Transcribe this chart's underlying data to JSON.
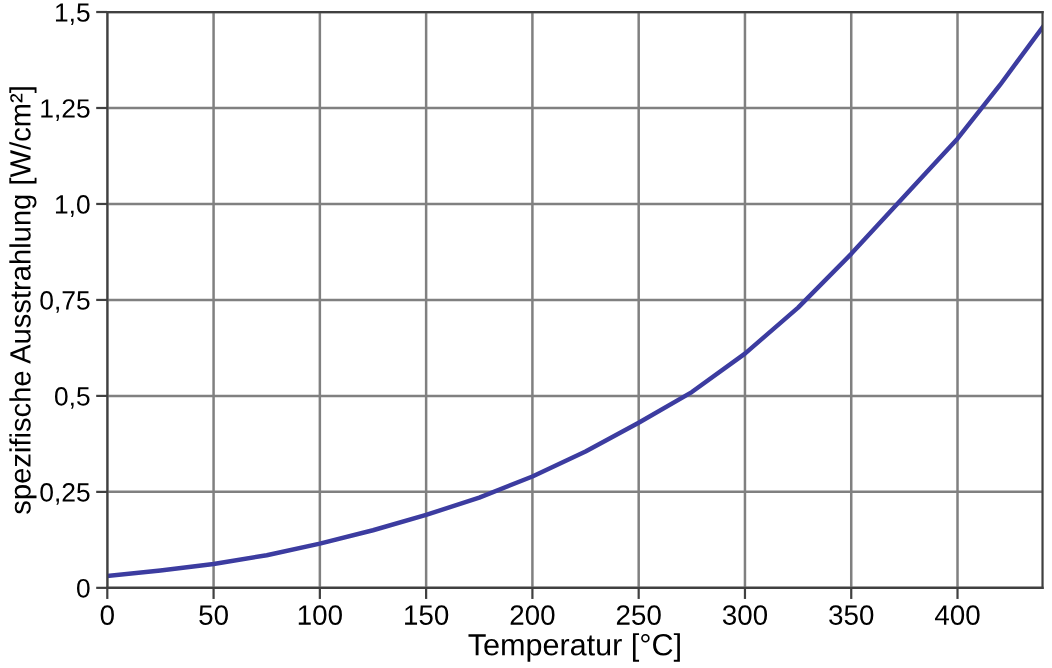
{
  "chart_data": {
    "type": "line",
    "xlabel": "Temperatur [°C]",
    "ylabel": "spezifische Ausstrahlung [W/cm²]",
    "x": [
      0,
      25,
      50,
      75,
      100,
      125,
      150,
      175,
      200,
      225,
      250,
      275,
      300,
      325,
      350,
      375,
      400,
      420,
      440
    ],
    "series": [
      {
        "color": "#3c3ca0",
        "values": [
          0.031,
          0.045,
          0.062,
          0.085,
          0.115,
          0.15,
          0.19,
          0.235,
          0.29,
          0.355,
          0.43,
          0.51,
          0.61,
          0.73,
          0.87,
          1.02,
          1.17,
          1.31,
          1.46
        ]
      }
    ],
    "xlim": [
      0,
      440
    ],
    "ylim": [
      0,
      1.5
    ],
    "xticks": [
      0,
      50,
      100,
      150,
      200,
      250,
      300,
      350,
      400
    ],
    "yticks": [
      0,
      {
        "value": 0.25,
        "label": "0,25"
      },
      {
        "value": 0.5,
        "label": "0,5"
      },
      {
        "value": 0.75,
        "label": "0,75"
      },
      {
        "value": 1.0,
        "label": "1,0"
      },
      {
        "value": 1.25,
        "label": "1,25"
      },
      {
        "value": 1.5,
        "label": "1,5"
      }
    ],
    "grid": true,
    "marker": "none",
    "line_style": "solid",
    "legend": false
  }
}
